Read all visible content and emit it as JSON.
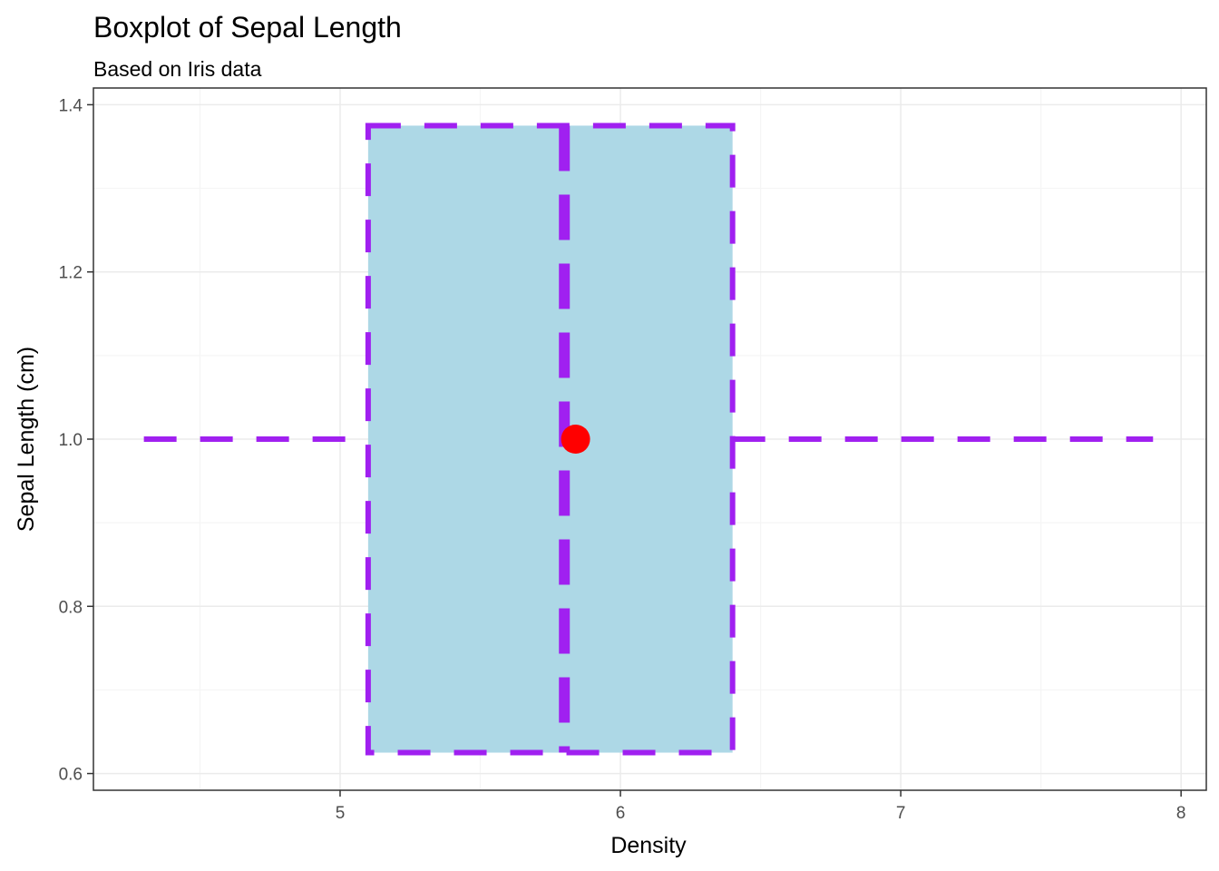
{
  "chart_data": {
    "type": "boxplot",
    "title": "Boxplot of Sepal Length",
    "subtitle": "Based on Iris data",
    "xlabel": "Density",
    "ylabel": "Sepal Length (cm)",
    "orientation": "horizontal",
    "xlim": [
      4.12,
      8.09
    ],
    "ylim": [
      0.58,
      1.42
    ],
    "x_ticks": [
      5,
      6,
      7,
      8
    ],
    "x_tick_labels": [
      "5",
      "6",
      "7",
      "8"
    ],
    "y_ticks": [
      0.6,
      0.8,
      1.0,
      1.2,
      1.4
    ],
    "y_tick_labels": [
      "0.6",
      "0.8",
      "1.0",
      "1.2",
      "1.4"
    ],
    "grid": true,
    "box": {
      "min": 4.3,
      "q1": 5.1,
      "median": 5.8,
      "q3": 6.4,
      "max": 7.9,
      "mean": 5.84,
      "y_center": 1.0,
      "y_bottom": 0.625,
      "y_top": 1.375
    },
    "colors": {
      "fill": "#add8e6",
      "outline": "#a020f0",
      "mean_point": "#ff0000",
      "grid_major": "#ebebeb",
      "grid_minor": "#f5f5f5",
      "panel_border": "#333333"
    }
  }
}
